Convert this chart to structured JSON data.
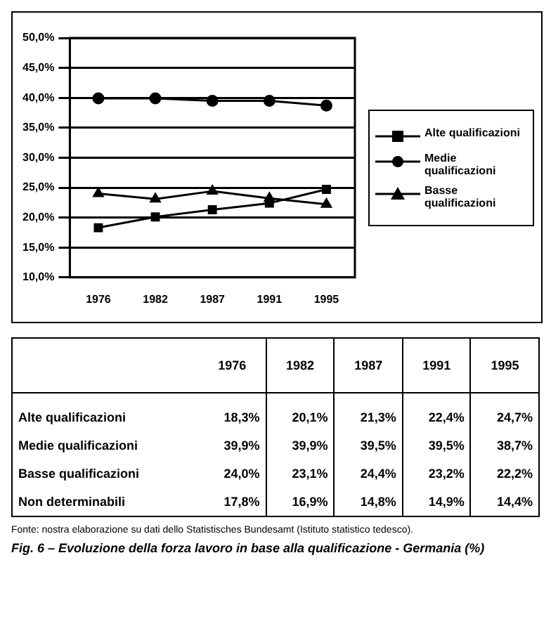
{
  "chart_data": [
    {
      "type": "line",
      "categories": [
        "1976",
        "1982",
        "1987",
        "1991",
        "1995"
      ],
      "series": [
        {
          "name": "Alte qualificazioni",
          "color": "#000000",
          "marker": "square",
          "values": [
            18.3,
            20.1,
            21.3,
            22.4,
            24.7
          ]
        },
        {
          "name": "Medie qualificazioni",
          "color": "#000000",
          "marker": "circle",
          "values": [
            39.9,
            39.9,
            39.5,
            39.5,
            38.7
          ]
        },
        {
          "name": "Basse qualificazioni",
          "color": "#000000",
          "marker": "triangle",
          "values": [
            24.0,
            23.1,
            24.4,
            23.2,
            22.2
          ]
        }
      ],
      "ylim": [
        10,
        50
      ],
      "yticks": [
        {
          "value": 10,
          "label": "10,0%"
        },
        {
          "value": 15,
          "label": "15,0%"
        },
        {
          "value": 20,
          "label": "20,0%"
        },
        {
          "value": 25,
          "label": "25,0%"
        },
        {
          "value": 30,
          "label": "30,0%"
        },
        {
          "value": 35,
          "label": "35,0%"
        },
        {
          "value": 40,
          "label": "40,0%"
        },
        {
          "value": 45,
          "label": "45,0%"
        },
        {
          "value": 50,
          "label": "50,0%"
        }
      ],
      "grid": "y",
      "legend": "right"
    },
    {
      "type": "other",
      "title": "Fig. 6 – Evoluzione della forza lavoro in base alla qualificazione - Germania (%)",
      "categories": [
        "1976",
        "1982",
        "1987",
        "1991",
        "1995"
      ],
      "series": [
        {
          "name": "Alte qualificazioni",
          "values": [
            18.3,
            20.1,
            21.3,
            22.4,
            24.7
          ],
          "value_labels": [
            "18,3%",
            "20,1%",
            "21,3%",
            "22,4%",
            "24,7%"
          ]
        },
        {
          "name": "Medie qualificazioni",
          "values": [
            39.9,
            39.9,
            39.5,
            39.5,
            38.7
          ],
          "value_labels": [
            "39,9%",
            "39,9%",
            "39,5%",
            "39,5%",
            "38,7%"
          ]
        },
        {
          "name": "Basse qualificazioni",
          "values": [
            24.0,
            23.1,
            24.4,
            23.2,
            22.2
          ],
          "value_labels": [
            "24,0%",
            "23,1%",
            "24,4%",
            "23,2%",
            "22,2%"
          ]
        },
        {
          "name": "Non determinabili",
          "values": [
            17.8,
            16.9,
            14.8,
            14.9,
            14.4
          ],
          "value_labels": [
            "17,8%",
            "16,9%",
            "14,8%",
            "14,9%",
            "14,4%"
          ]
        }
      ],
      "annotations": [
        "Fonte: nostra elaborazione su dati dello Statistisches Bundesamt (Istituto statistico tedesco)."
      ]
    }
  ]
}
